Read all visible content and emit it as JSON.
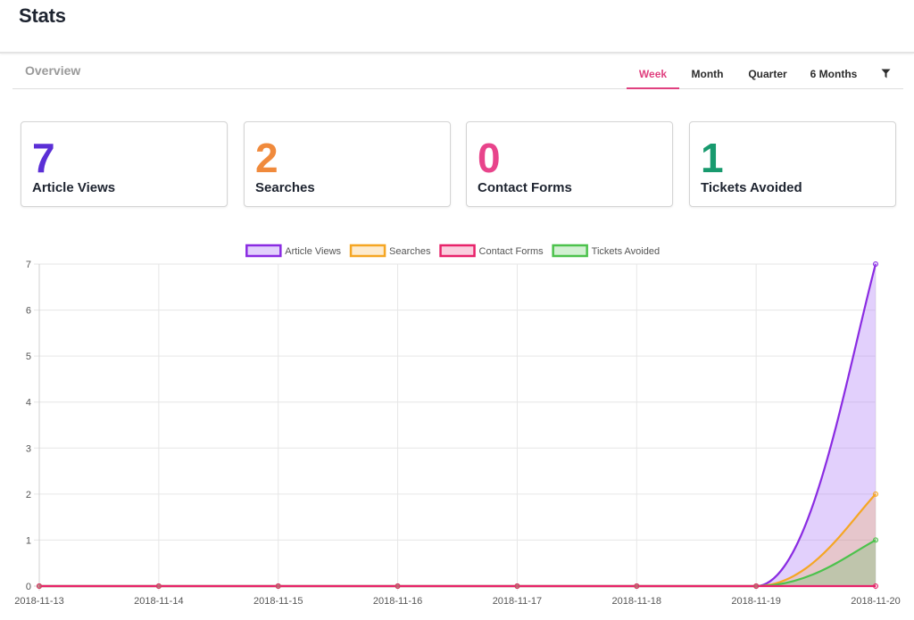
{
  "header": {
    "title": "Stats"
  },
  "subnav": {
    "overview_label": "Overview",
    "tabs": [
      {
        "label": "Week",
        "active": true
      },
      {
        "label": "Month",
        "active": false
      },
      {
        "label": "Quarter",
        "active": false
      },
      {
        "label": "6 Months",
        "active": false
      }
    ],
    "filter_icon": "filter-icon"
  },
  "stats": [
    {
      "value": "7",
      "label": "Article Views",
      "color": "#5b2fd6"
    },
    {
      "value": "2",
      "label": "Searches",
      "color": "#f08a3c"
    },
    {
      "value": "0",
      "label": "Contact Forms",
      "color": "#e8448b"
    },
    {
      "value": "1",
      "label": "Tickets Avoided",
      "color": "#189a6e"
    }
  ],
  "chart_data": {
    "type": "line",
    "x": [
      "2018-11-13",
      "2018-11-14",
      "2018-11-15",
      "2018-11-16",
      "2018-11-17",
      "2018-11-18",
      "2018-11-19",
      "2018-11-20"
    ],
    "ylim": [
      0,
      7
    ],
    "yticks": [
      0,
      1,
      2,
      3,
      4,
      5,
      6,
      7
    ],
    "grid": true,
    "legend_position": "top",
    "series": [
      {
        "name": "Article Views",
        "values": [
          0,
          0,
          0,
          0,
          0,
          0,
          0,
          7
        ],
        "color": "#8a2be2",
        "fill": "rgba(171,120,245,0.35)"
      },
      {
        "name": "Searches",
        "values": [
          0,
          0,
          0,
          0,
          0,
          0,
          0,
          2
        ],
        "color": "#f5a623",
        "fill": "rgba(245,166,35,0.22)"
      },
      {
        "name": "Contact Forms",
        "values": [
          0,
          0,
          0,
          0,
          0,
          0,
          0,
          0
        ],
        "color": "#e8226a",
        "fill": "rgba(232,34,106,0.22)"
      },
      {
        "name": "Tickets Avoided",
        "values": [
          0,
          0,
          0,
          0,
          0,
          0,
          0,
          1
        ],
        "color": "#4cc24c",
        "fill": "rgba(76,194,76,0.25)"
      }
    ]
  }
}
